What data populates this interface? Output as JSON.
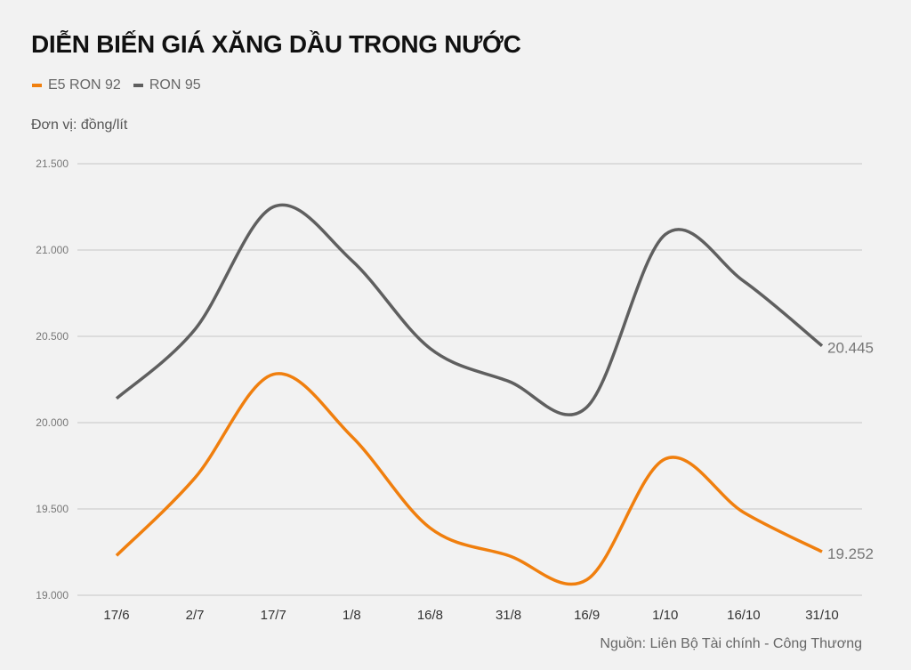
{
  "header": {
    "title": "DIỄN BIẾN GIÁ XĂNG DẦU TRONG NƯỚC",
    "unit": "Đơn vị: đồng/lít"
  },
  "legend": [
    {
      "label": "E5 RON 92",
      "color": "#f07f0e"
    },
    {
      "label": "RON 95",
      "color": "#5f5f5f"
    }
  ],
  "footer": {
    "source": "Nguồn: Liên Bộ Tài chính - Công Thương"
  },
  "chart_data": {
    "type": "line",
    "title": "DIỄN BIẾN GIÁ XĂNG DẦU TRONG NƯỚC",
    "xlabel": "",
    "ylabel": "Đơn vị: đồng/lít",
    "categories": [
      "17/6",
      "2/7",
      "17/7",
      "1/8",
      "16/8",
      "31/8",
      "16/9",
      "1/10",
      "16/10",
      "31/10"
    ],
    "series": [
      {
        "name": "E5 RON 92",
        "color": "#f07f0e",
        "values": [
          19230,
          19680,
          20280,
          19920,
          19390,
          19230,
          19090,
          19790,
          19480,
          19252
        ]
      },
      {
        "name": "RON 95",
        "color": "#5f5f5f",
        "values": [
          20140,
          20540,
          21250,
          20940,
          20430,
          20240,
          20090,
          21090,
          20820,
          20445
        ]
      }
    ],
    "end_labels": [
      "19.252",
      "20.445"
    ],
    "yticks": [
      19000,
      19500,
      20000,
      20500,
      21000,
      21500
    ],
    "ytick_labels": [
      "19.000",
      "19.500",
      "20.000",
      "20.500",
      "21.000",
      "21.500"
    ],
    "ylim": [
      19000,
      21500
    ],
    "grid": true,
    "legend_position": "top-left"
  }
}
